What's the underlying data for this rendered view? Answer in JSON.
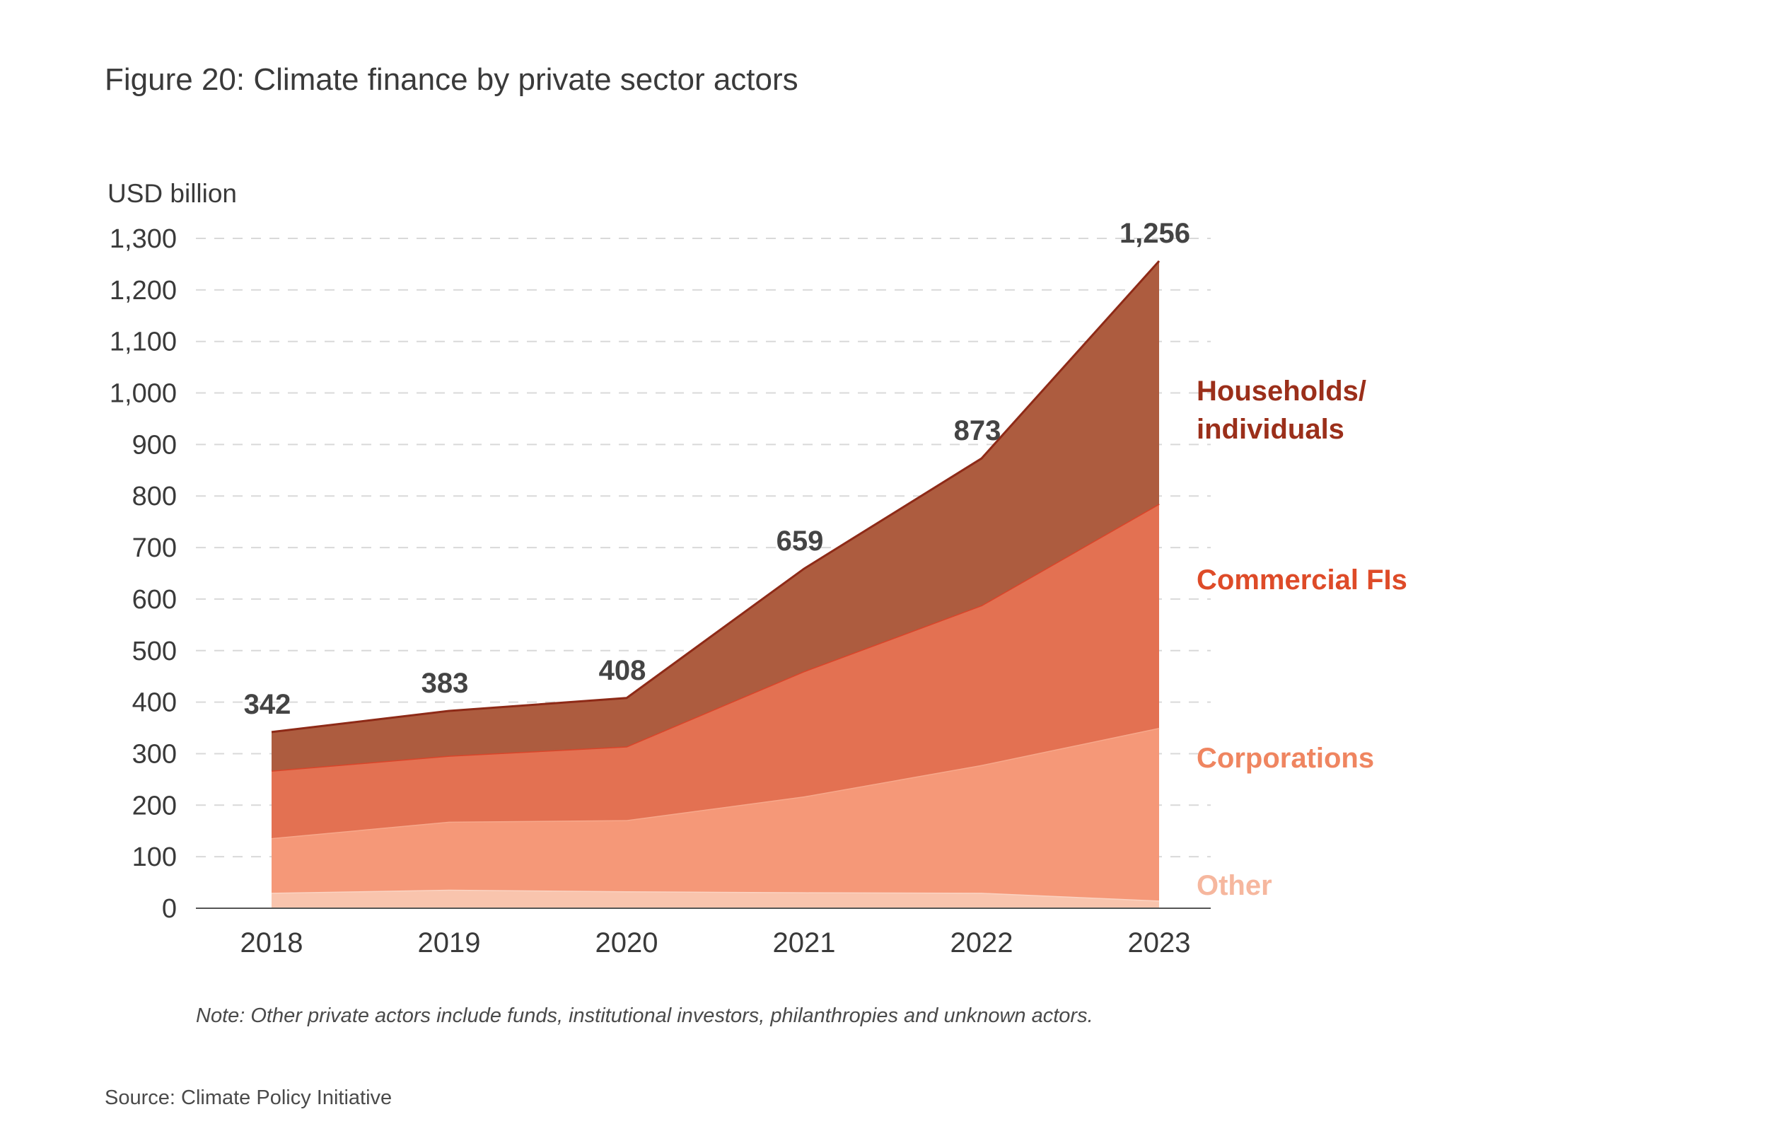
{
  "figure": {
    "title": "Figure 20: Climate finance by private sector actors",
    "note": "Note: Other private actors include funds, institutional investors, philanthropies and unknown actors.",
    "source": "Source: Climate Policy Initiative"
  },
  "chart_data": {
    "type": "area",
    "stacked": true,
    "ylabel": "USD billion",
    "xlabel": "",
    "x": [
      "2018",
      "2019",
      "2020",
      "2021",
      "2022",
      "2023"
    ],
    "ylim": [
      0,
      1300
    ],
    "yticks": [
      0,
      100,
      200,
      300,
      400,
      500,
      600,
      700,
      800,
      900,
      1000,
      1100,
      1200,
      1300
    ],
    "ytick_labels": [
      "0",
      "100",
      "200",
      "300",
      "400",
      "500",
      "600",
      "700",
      "800",
      "900",
      "1,000",
      "1,100",
      "1,200",
      "1,300"
    ],
    "grid": true,
    "legend": "right, direct labels",
    "series": [
      {
        "name": "Other",
        "color": "#f9c4ad",
        "values": [
          30,
          36,
          33,
          31,
          30,
          15
        ]
      },
      {
        "name": "Corporations",
        "color": "#f59878",
        "values": [
          106,
          132,
          138,
          186,
          248,
          335
        ]
      },
      {
        "name": "Commercial FIs",
        "color": "#e37152",
        "values": [
          131,
          128,
          143,
          243,
          310,
          435
        ]
      },
      {
        "name": "Households/ individuals",
        "color": "#ad5c3f",
        "values": [
          75,
          87,
          94,
          199,
          285,
          471
        ]
      }
    ],
    "series_label_colors": [
      "#f6b79e",
      "#ef8560",
      "#de4b28",
      "#9b2f1a"
    ],
    "series_label_lines": [
      [
        "Other"
      ],
      [
        "Corporations"
      ],
      [
        "Commercial FIs"
      ],
      [
        "Households/",
        "individuals"
      ]
    ],
    "totals": [
      342,
      383,
      408,
      659,
      873,
      1256
    ],
    "total_labels": [
      "342",
      "383",
      "408",
      "659",
      "873",
      "1,256"
    ]
  }
}
